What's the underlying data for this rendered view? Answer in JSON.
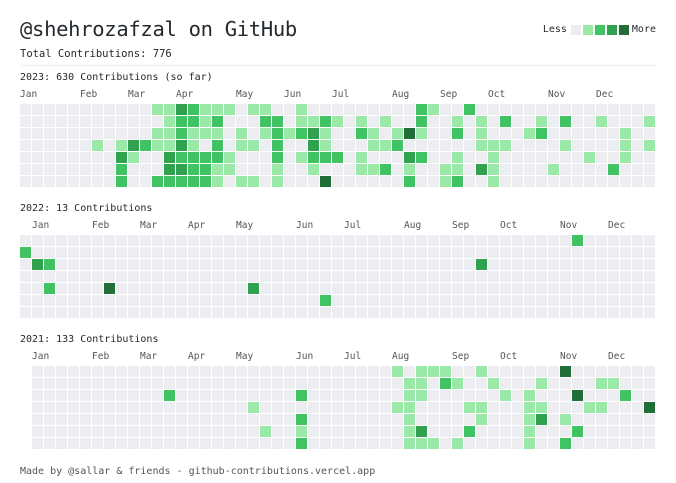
{
  "header": {
    "title": "@shehrozafzal on GitHub",
    "total": "Total Contributions: 776"
  },
  "legend": {
    "less": "Less",
    "more": "More",
    "colors": [
      "#ebedf0",
      "#9be9a8",
      "#40c463",
      "#30a14e",
      "#216e39"
    ]
  },
  "years": [
    {
      "title": "2023: 630 Contributions (so far)",
      "months": [
        {
          "label": "Jan",
          "week": 0
        },
        {
          "label": "Feb",
          "week": 5
        },
        {
          "label": "Mar",
          "week": 9
        },
        {
          "label": "Apr",
          "week": 13
        },
        {
          "label": "May",
          "week": 18
        },
        {
          "label": "Jun",
          "week": 22
        },
        {
          "label": "Jul",
          "week": 26
        },
        {
          "label": "Aug",
          "week": 31
        },
        {
          "label": "Sep",
          "week": 35
        },
        {
          "label": "Oct",
          "week": 39
        },
        {
          "label": "Nov",
          "week": 44
        },
        {
          "label": "Dec",
          "week": 48
        }
      ],
      "contributions": [
        [
          0,
          0,
          0,
          0,
          0,
          0,
          0,
          0,
          0,
          0,
          0,
          1,
          1,
          3,
          2,
          1,
          1,
          1,
          0,
          1,
          1,
          0,
          0,
          1,
          0,
          0,
          0,
          0,
          0,
          0,
          0,
          0,
          0,
          2,
          1,
          0,
          0,
          2,
          0,
          0,
          0,
          0,
          0,
          0,
          0,
          0,
          0,
          0,
          0,
          0,
          0,
          0,
          0
        ],
        [
          0,
          0,
          0,
          0,
          0,
          0,
          0,
          0,
          0,
          0,
          0,
          0,
          1,
          2,
          2,
          1,
          2,
          0,
          0,
          0,
          2,
          2,
          0,
          1,
          1,
          2,
          1,
          0,
          1,
          0,
          1,
          0,
          0,
          2,
          0,
          0,
          1,
          0,
          1,
          0,
          2,
          0,
          0,
          1,
          0,
          2,
          0,
          0,
          1,
          0,
          0,
          0,
          1
        ],
        [
          0,
          0,
          0,
          0,
          0,
          0,
          0,
          0,
          0,
          0,
          0,
          1,
          1,
          2,
          1,
          1,
          1,
          0,
          1,
          0,
          1,
          2,
          1,
          2,
          3,
          1,
          0,
          0,
          2,
          1,
          0,
          1,
          4,
          1,
          0,
          0,
          2,
          0,
          1,
          0,
          0,
          0,
          1,
          2,
          0,
          0,
          0,
          0,
          0,
          0,
          1,
          0,
          0
        ],
        [
          0,
          0,
          0,
          0,
          0,
          0,
          1,
          0,
          1,
          3,
          2,
          1,
          1,
          3,
          1,
          0,
          2,
          0,
          1,
          1,
          0,
          2,
          0,
          0,
          3,
          1,
          0,
          0,
          0,
          1,
          1,
          2,
          0,
          0,
          0,
          0,
          0,
          0,
          1,
          1,
          1,
          0,
          0,
          0,
          0,
          1,
          0,
          0,
          0,
          0,
          1,
          0,
          1
        ],
        [
          0,
          0,
          0,
          0,
          0,
          0,
          0,
          0,
          3,
          1,
          0,
          0,
          3,
          2,
          2,
          2,
          2,
          1,
          0,
          0,
          0,
          2,
          0,
          1,
          2,
          2,
          2,
          0,
          1,
          0,
          0,
          0,
          3,
          2,
          0,
          0,
          1,
          0,
          0,
          1,
          0,
          0,
          0,
          0,
          0,
          0,
          0,
          1,
          0,
          0,
          1,
          0,
          0
        ],
        [
          0,
          0,
          0,
          0,
          0,
          0,
          0,
          0,
          2,
          0,
          0,
          0,
          3,
          3,
          2,
          2,
          1,
          1,
          0,
          0,
          0,
          1,
          0,
          0,
          1,
          0,
          0,
          0,
          1,
          1,
          2,
          0,
          1,
          0,
          0,
          1,
          1,
          0,
          3,
          1,
          0,
          0,
          0,
          0,
          1,
          0,
          0,
          0,
          0,
          2,
          0,
          0,
          0
        ],
        [
          0,
          0,
          0,
          0,
          0,
          0,
          0,
          0,
          2,
          0,
          0,
          2,
          2,
          2,
          2,
          2,
          1,
          0,
          1,
          1,
          0,
          1,
          0,
          0,
          0,
          4,
          0,
          0,
          0,
          0,
          0,
          0,
          2,
          0,
          0,
          1,
          2,
          0,
          0,
          1,
          0,
          0,
          0,
          0,
          0,
          0,
          0,
          0,
          0,
          0,
          0,
          0,
          0
        ]
      ]
    },
    {
      "title": "2022: 13 Contributions",
      "months": [
        {
          "label": "Jan",
          "week": 1
        },
        {
          "label": "Feb",
          "week": 6
        },
        {
          "label": "Mar",
          "week": 10
        },
        {
          "label": "Apr",
          "week": 14
        },
        {
          "label": "May",
          "week": 18
        },
        {
          "label": "Jun",
          "week": 23
        },
        {
          "label": "Jul",
          "week": 27
        },
        {
          "label": "Aug",
          "week": 32
        },
        {
          "label": "Sep",
          "week": 36
        },
        {
          "label": "Oct",
          "week": 40
        },
        {
          "label": "Nov",
          "week": 45
        },
        {
          "label": "Dec",
          "week": 49
        }
      ],
      "contributions": [
        [
          0,
          0,
          0,
          0,
          0,
          0,
          0,
          0,
          0,
          0,
          0,
          0,
          0,
          0,
          0,
          0,
          0,
          0,
          0,
          0,
          0,
          0,
          0,
          0,
          0,
          0,
          0,
          0,
          0,
          0,
          0,
          0,
          0,
          0,
          0,
          0,
          0,
          0,
          0,
          0,
          0,
          0,
          0,
          0,
          0,
          0,
          2,
          0,
          0,
          0,
          0,
          0,
          0
        ],
        [
          2,
          0,
          0,
          0,
          0,
          0,
          0,
          0,
          0,
          0,
          0,
          0,
          0,
          0,
          0,
          0,
          0,
          0,
          0,
          0,
          0,
          0,
          0,
          0,
          0,
          0,
          0,
          0,
          0,
          0,
          0,
          0,
          0,
          0,
          0,
          0,
          0,
          0,
          0,
          0,
          0,
          0,
          0,
          0,
          0,
          0,
          0,
          0,
          0,
          0,
          0,
          0,
          0
        ],
        [
          0,
          3,
          2,
          0,
          0,
          0,
          0,
          0,
          0,
          0,
          0,
          0,
          0,
          0,
          0,
          0,
          0,
          0,
          0,
          0,
          0,
          0,
          0,
          0,
          0,
          0,
          0,
          0,
          0,
          0,
          0,
          0,
          0,
          0,
          0,
          0,
          0,
          0,
          3,
          0,
          0,
          0,
          0,
          0,
          0,
          0,
          0,
          0,
          0,
          0,
          0,
          0,
          0
        ],
        [
          0,
          0,
          0,
          0,
          0,
          0,
          0,
          0,
          0,
          0,
          0,
          0,
          0,
          0,
          0,
          0,
          0,
          0,
          0,
          0,
          0,
          0,
          0,
          0,
          0,
          0,
          0,
          0,
          0,
          0,
          0,
          0,
          0,
          0,
          0,
          0,
          0,
          0,
          0,
          0,
          0,
          0,
          0,
          0,
          0,
          0,
          0,
          0,
          0,
          0,
          0,
          0,
          0
        ],
        [
          0,
          0,
          2,
          0,
          0,
          0,
          0,
          4,
          0,
          0,
          0,
          0,
          0,
          0,
          0,
          0,
          0,
          0,
          0,
          3,
          0,
          0,
          0,
          0,
          0,
          0,
          0,
          0,
          0,
          0,
          0,
          0,
          0,
          0,
          0,
          0,
          0,
          0,
          0,
          0,
          0,
          0,
          0,
          0,
          0,
          0,
          0,
          0,
          0,
          0,
          0,
          0,
          0
        ],
        [
          0,
          0,
          0,
          0,
          0,
          0,
          0,
          0,
          0,
          0,
          0,
          0,
          0,
          0,
          0,
          0,
          0,
          0,
          0,
          0,
          0,
          0,
          0,
          0,
          0,
          2,
          0,
          0,
          0,
          0,
          0,
          0,
          0,
          0,
          0,
          0,
          0,
          0,
          0,
          0,
          0,
          0,
          0,
          0,
          0,
          0,
          0,
          0,
          0,
          0,
          0,
          0,
          0
        ],
        [
          0,
          0,
          0,
          0,
          0,
          0,
          0,
          0,
          0,
          0,
          0,
          0,
          0,
          0,
          0,
          0,
          0,
          0,
          0,
          0,
          0,
          0,
          0,
          0,
          0,
          0,
          0,
          0,
          0,
          0,
          0,
          0,
          0,
          0,
          0,
          0,
          0,
          0,
          0,
          0,
          0,
          0,
          0,
          0,
          0,
          0,
          0,
          0,
          0,
          0,
          0,
          0,
          0
        ]
      ]
    },
    {
      "title": "2021: 133 Contributions",
      "months": [
        {
          "label": "Jan",
          "week": 1
        },
        {
          "label": "Feb",
          "week": 6
        },
        {
          "label": "Mar",
          "week": 10
        },
        {
          "label": "Apr",
          "week": 14
        },
        {
          "label": "May",
          "week": 18
        },
        {
          "label": "Jun",
          "week": 23
        },
        {
          "label": "Jul",
          "week": 27
        },
        {
          "label": "Aug",
          "week": 31
        },
        {
          "label": "Sep",
          "week": 36
        },
        {
          "label": "Oct",
          "week": 40
        },
        {
          "label": "Nov",
          "week": 45
        },
        {
          "label": "Dec",
          "week": 49
        }
      ],
      "contributions": [
        [
          -1,
          0,
          0,
          0,
          0,
          0,
          0,
          0,
          0,
          0,
          0,
          0,
          0,
          0,
          0,
          0,
          0,
          0,
          0,
          0,
          0,
          0,
          0,
          0,
          0,
          0,
          0,
          0,
          0,
          0,
          0,
          1,
          0,
          1,
          1,
          1,
          0,
          0,
          1,
          0,
          0,
          0,
          0,
          0,
          0,
          4,
          0,
          0,
          0,
          0,
          0,
          0,
          0
        ],
        [
          -1,
          0,
          0,
          0,
          0,
          0,
          0,
          0,
          0,
          0,
          0,
          0,
          0,
          0,
          0,
          0,
          0,
          0,
          0,
          0,
          0,
          0,
          0,
          0,
          0,
          0,
          0,
          0,
          0,
          0,
          0,
          0,
          1,
          1,
          0,
          2,
          1,
          0,
          0,
          1,
          0,
          0,
          0,
          1,
          0,
          0,
          0,
          0,
          1,
          1,
          0,
          0,
          0
        ],
        [
          -1,
          0,
          0,
          0,
          0,
          0,
          0,
          0,
          0,
          0,
          0,
          0,
          2,
          0,
          0,
          0,
          0,
          0,
          0,
          0,
          0,
          0,
          0,
          2,
          0,
          0,
          0,
          0,
          0,
          0,
          0,
          0,
          1,
          1,
          0,
          0,
          0,
          0,
          0,
          0,
          1,
          0,
          1,
          0,
          0,
          0,
          4,
          0,
          0,
          0,
          2,
          0,
          0
        ],
        [
          -1,
          0,
          0,
          0,
          0,
          0,
          0,
          0,
          0,
          0,
          0,
          0,
          0,
          0,
          0,
          0,
          0,
          0,
          0,
          1,
          0,
          0,
          0,
          0,
          0,
          0,
          0,
          0,
          0,
          0,
          0,
          1,
          1,
          0,
          0,
          0,
          0,
          1,
          1,
          0,
          0,
          0,
          1,
          1,
          0,
          0,
          0,
          1,
          1,
          0,
          0,
          0,
          4
        ],
        [
          -1,
          0,
          0,
          0,
          0,
          0,
          0,
          0,
          0,
          0,
          0,
          0,
          0,
          0,
          0,
          0,
          0,
          0,
          0,
          0,
          0,
          0,
          0,
          2,
          0,
          0,
          0,
          0,
          0,
          0,
          0,
          0,
          1,
          0,
          0,
          0,
          0,
          0,
          1,
          0,
          0,
          0,
          1,
          3,
          0,
          1,
          0,
          0,
          0,
          0,
          0,
          0,
          0
        ],
        [
          -1,
          0,
          0,
          0,
          0,
          0,
          0,
          0,
          0,
          0,
          0,
          0,
          0,
          0,
          0,
          0,
          0,
          0,
          0,
          0,
          1,
          0,
          0,
          1,
          0,
          0,
          0,
          0,
          0,
          0,
          0,
          0,
          1,
          3,
          0,
          0,
          0,
          2,
          0,
          0,
          0,
          0,
          1,
          0,
          0,
          0,
          2,
          0,
          0,
          0,
          0,
          0,
          0
        ],
        [
          -1,
          0,
          0,
          0,
          0,
          0,
          0,
          0,
          0,
          0,
          0,
          0,
          0,
          0,
          0,
          0,
          0,
          0,
          0,
          0,
          0,
          0,
          0,
          2,
          0,
          0,
          0,
          0,
          0,
          0,
          0,
          0,
          1,
          1,
          1,
          0,
          1,
          0,
          0,
          0,
          0,
          0,
          1,
          0,
          0,
          2,
          0,
          0,
          0,
          0,
          0,
          0,
          0
        ]
      ]
    }
  ],
  "footer": "Made by @sallar & friends - github-contributions.vercel.app"
}
